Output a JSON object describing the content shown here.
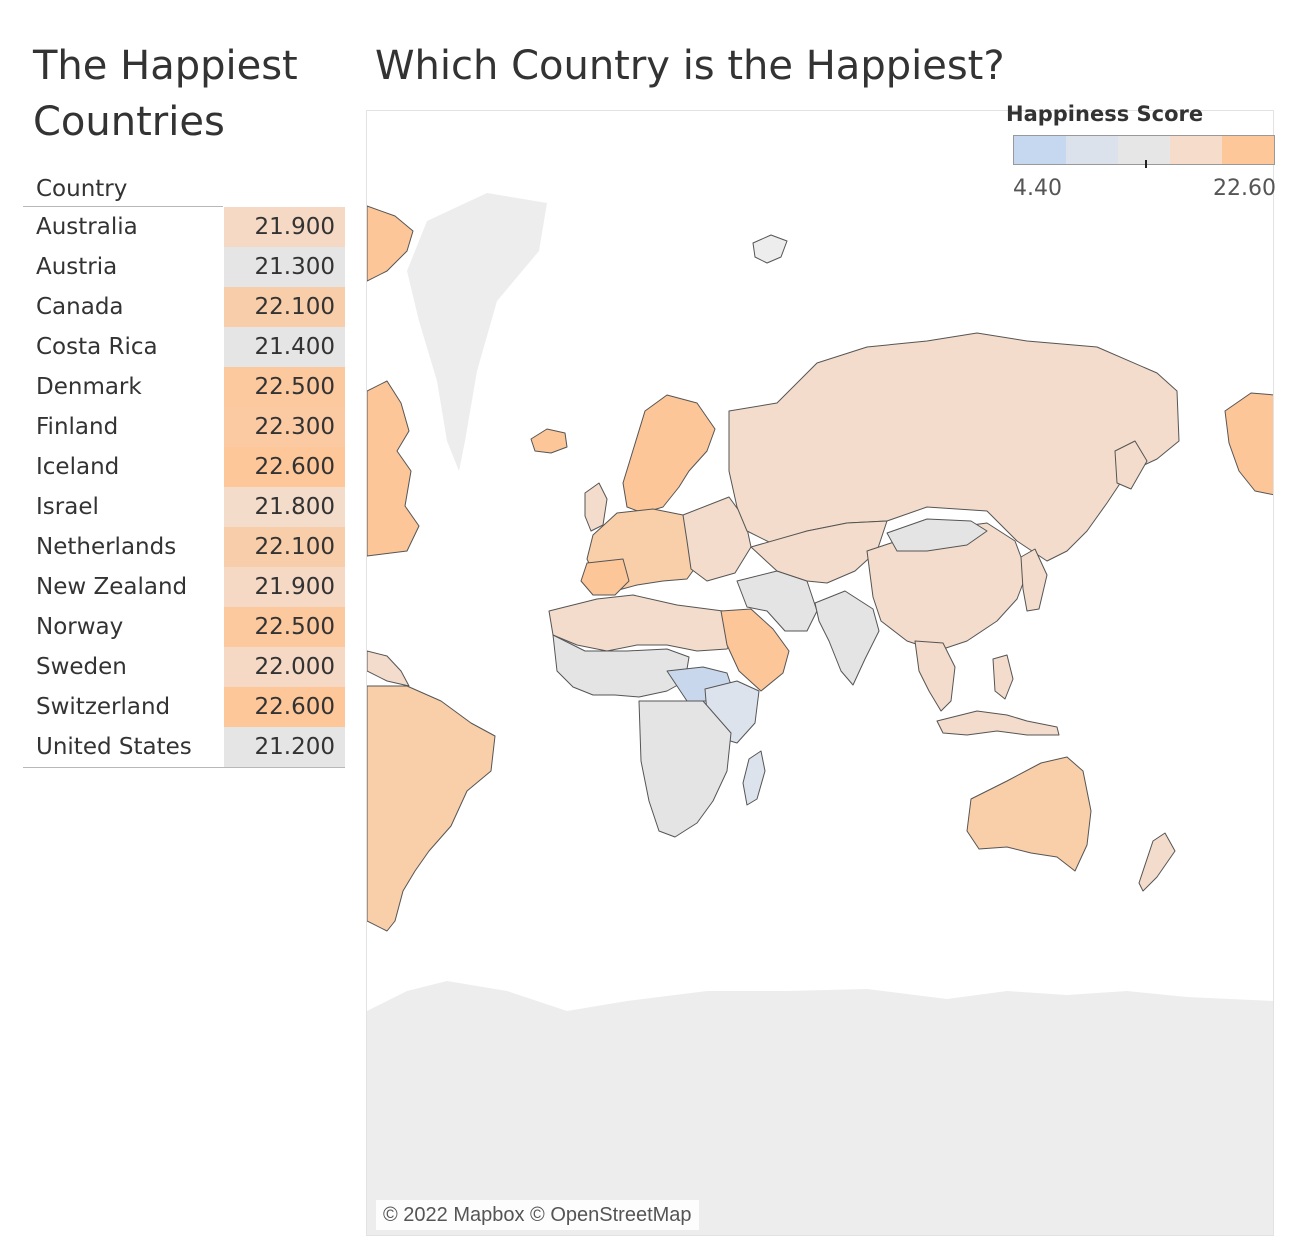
{
  "left_panel": {
    "title_line1": "The Happiest",
    "title_line2": "Countries",
    "column_header": "Country",
    "rows": [
      {
        "country": "Australia",
        "score": "21.900",
        "color": "#f5d9c4"
      },
      {
        "country": "Austria",
        "score": "21.300",
        "color": "#e5e5e5"
      },
      {
        "country": "Canada",
        "score": "22.100",
        "color": "#f8cda9"
      },
      {
        "country": "Costa Rica",
        "score": "21.400",
        "color": "#e5e5e5"
      },
      {
        "country": "Denmark",
        "score": "22.500",
        "color": "#fcc89d"
      },
      {
        "country": "Finland",
        "score": "22.300",
        "color": "#fbcaa3"
      },
      {
        "country": "Iceland",
        "score": "22.600",
        "color": "#fdc799"
      },
      {
        "country": "Israel",
        "score": "21.800",
        "color": "#f4dccb"
      },
      {
        "country": "Netherlands",
        "score": "22.100",
        "color": "#f8cda9"
      },
      {
        "country": "New Zealand",
        "score": "21.900",
        "color": "#f5d9c4"
      },
      {
        "country": "Norway",
        "score": "22.500",
        "color": "#fcc89d"
      },
      {
        "country": "Sweden",
        "score": "22.000",
        "color": "#f5d9c4"
      },
      {
        "country": "Switzerland",
        "score": "22.600",
        "color": "#fdc799"
      },
      {
        "country": "United States",
        "score": "21.200",
        "color": "#e5e5e5"
      }
    ]
  },
  "map": {
    "title": "Which Country is the Happiest?",
    "attribution": "© 2022 Mapbox © OpenStreetMap",
    "land_color": "#ededed",
    "border_color": "#555555",
    "legend": {
      "title": "Happiness Score",
      "min_label": "4.40",
      "max_label": "22.60",
      "colors": [
        "#c6d8f0",
        "#dbe2ec",
        "#e6e6e6",
        "#f5dccb",
        "#fdc799"
      ]
    },
    "colors": {
      "blue": "#c9d7ec",
      "light_blue": "#dde3ec",
      "grey": "#e4e4e4",
      "light_orange": "#f3dccb",
      "orange": "#f9cfa9",
      "strong_orange": "#fcc699"
    }
  }
}
